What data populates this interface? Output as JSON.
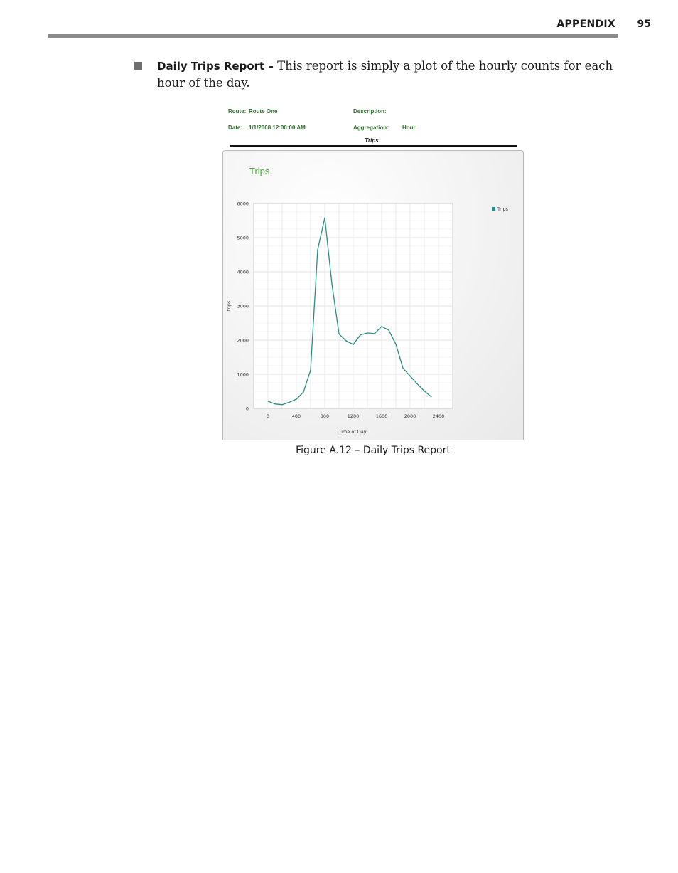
{
  "header": {
    "section": "APPENDIX",
    "page_number": "95"
  },
  "paragraph": {
    "lead": "Daily Trips Report –",
    "text": " This report is simply a plot of the hourly counts for each hour of the day."
  },
  "report_header": {
    "route_label": "Route:",
    "route_value": "Route One",
    "description_label": "Description:",
    "date_label": "Date:",
    "date_value": "1/1/2008 12:00:00 AM",
    "aggregation_label": "Aggregation:",
    "aggregation_value": "Hour",
    "report_title": "Trips"
  },
  "chart_data": {
    "type": "line",
    "title": "Trips",
    "xlabel": "Time of Day",
    "ylabel": "trips",
    "xlim": [
      -200,
      2600
    ],
    "ylim": [
      0,
      6000
    ],
    "x_ticks": [
      0,
      400,
      800,
      1200,
      1600,
      2000,
      2400
    ],
    "y_ticks": [
      0,
      1000,
      2000,
      3000,
      4000,
      5000,
      6000
    ],
    "grid": true,
    "legend_position": "top-right",
    "series": [
      {
        "name": "Trips",
        "color": "#2a8c82",
        "x": [
          0,
          100,
          200,
          300,
          400,
          500,
          600,
          700,
          800,
          900,
          1000,
          1100,
          1200,
          1300,
          1400,
          1500,
          1600,
          1700,
          1800,
          1900,
          2000,
          2100,
          2200,
          2300
        ],
        "y": [
          210,
          130,
          110,
          180,
          270,
          480,
          1120,
          4650,
          5580,
          3650,
          2180,
          1980,
          1870,
          2150,
          2210,
          2190,
          2400,
          2290,
          1880,
          1180,
          950,
          720,
          510,
          340
        ]
      }
    ]
  },
  "caption": "Figure A.12 – Daily Trips Report"
}
